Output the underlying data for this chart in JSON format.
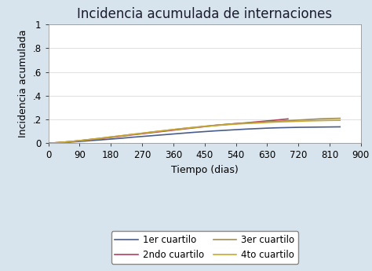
{
  "title": "Incidencia acumulada de internaciones",
  "xlabel": "Tiempo (dias)",
  "ylabel": "Incidencia acumulada",
  "xlim": [
    0,
    900
  ],
  "ylim": [
    0,
    1.0
  ],
  "xticks": [
    0,
    90,
    180,
    270,
    360,
    450,
    540,
    630,
    720,
    810,
    900
  ],
  "yticks": [
    0,
    0.2,
    0.4,
    0.6,
    0.8,
    1.0
  ],
  "ytick_labels": [
    "0",
    ".2",
    ".4",
    ".6",
    ".8",
    "1"
  ],
  "background_color": "#d8e4ed",
  "plot_bg_color": "#ffffff",
  "series": [
    {
      "label": "1er cuartilo",
      "color": "#4a5d8a",
      "x": [
        0,
        30,
        60,
        90,
        120,
        150,
        180,
        210,
        240,
        270,
        300,
        330,
        360,
        390,
        420,
        450,
        480,
        510,
        540,
        570,
        600,
        630,
        660,
        690,
        720,
        750,
        780,
        810,
        840
      ],
      "y": [
        0,
        0.004,
        0.009,
        0.015,
        0.022,
        0.028,
        0.035,
        0.042,
        0.05,
        0.057,
        0.064,
        0.071,
        0.078,
        0.085,
        0.092,
        0.098,
        0.104,
        0.109,
        0.114,
        0.119,
        0.123,
        0.127,
        0.13,
        0.132,
        0.134,
        0.135,
        0.136,
        0.137,
        0.138
      ]
    },
    {
      "label": "2ndo cuartilo",
      "color": "#b04060",
      "x": [
        0,
        30,
        60,
        90,
        120,
        150,
        180,
        210,
        240,
        270,
        300,
        330,
        360,
        390,
        420,
        450,
        480,
        510,
        540,
        570,
        600,
        630,
        640,
        650,
        660,
        670,
        680,
        690
      ],
      "y": [
        0,
        0.006,
        0.013,
        0.021,
        0.03,
        0.039,
        0.049,
        0.059,
        0.07,
        0.08,
        0.09,
        0.1,
        0.11,
        0.12,
        0.13,
        0.14,
        0.15,
        0.158,
        0.165,
        0.172,
        0.18,
        0.188,
        0.19,
        0.193,
        0.196,
        0.199,
        0.202,
        0.205
      ]
    },
    {
      "label": "3er cuartilo",
      "color": "#9e8c5a",
      "x": [
        0,
        30,
        60,
        90,
        120,
        150,
        180,
        210,
        240,
        270,
        300,
        330,
        360,
        390,
        420,
        450,
        480,
        510,
        540,
        570,
        600,
        630,
        660,
        690,
        720,
        750,
        780,
        810,
        840
      ],
      "y": [
        0,
        0.006,
        0.013,
        0.022,
        0.032,
        0.042,
        0.053,
        0.063,
        0.074,
        0.084,
        0.095,
        0.105,
        0.115,
        0.125,
        0.134,
        0.143,
        0.151,
        0.158,
        0.165,
        0.17,
        0.175,
        0.18,
        0.185,
        0.19,
        0.195,
        0.2,
        0.205,
        0.208,
        0.21
      ]
    },
    {
      "label": "4to cuartilo",
      "color": "#c8a832",
      "x": [
        0,
        30,
        60,
        90,
        120,
        150,
        180,
        210,
        240,
        270,
        300,
        330,
        360,
        390,
        420,
        450,
        480,
        510,
        540,
        570,
        600,
        630,
        660,
        690,
        720,
        750,
        780,
        810,
        840
      ],
      "y": [
        0,
        0.006,
        0.013,
        0.022,
        0.032,
        0.042,
        0.053,
        0.063,
        0.074,
        0.084,
        0.095,
        0.105,
        0.115,
        0.124,
        0.133,
        0.141,
        0.148,
        0.155,
        0.161,
        0.166,
        0.17,
        0.175,
        0.179,
        0.182,
        0.185,
        0.188,
        0.19,
        0.192,
        0.193
      ]
    }
  ],
  "legend_order": [
    0,
    1,
    2,
    3
  ],
  "legend_ncol": 2,
  "title_fontsize": 12,
  "axis_label_fontsize": 9,
  "tick_fontsize": 8.5,
  "legend_fontsize": 8.5,
  "linewidth": 1.2
}
